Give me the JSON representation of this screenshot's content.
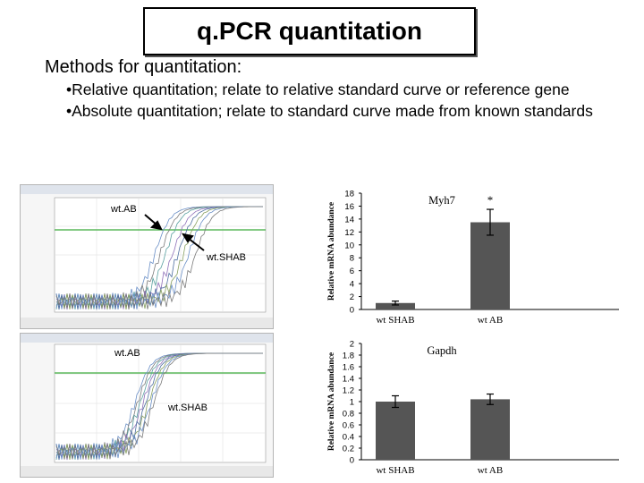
{
  "title": "q.PCR quantitation",
  "methods_heading": "Methods for quantitation:",
  "bullets": [
    "•Relative quantitation; relate to relative standard curve or reference gene",
    "•Absolute quantitation; relate to standard curve made from known standards"
  ],
  "amplification_plots": [
    {
      "label_top": "wt.AB",
      "label_bottom": "wt.SHAB"
    },
    {
      "label_top": "wt.AB",
      "label_bottom": "wt.SHAB"
    }
  ],
  "colors": {
    "bar": "#555555",
    "threshold": "#5cb85c",
    "panel_border": "#b5b5b5"
  },
  "chart_data": [
    {
      "type": "bar",
      "title": "Myh7",
      "ylabel": "Relative mRNA abundance",
      "categories": [
        "wt SHAB",
        "wt AB"
      ],
      "values": [
        1.0,
        13.5
      ],
      "errors": [
        0.3,
        2.0
      ],
      "ylim": [
        0,
        18
      ],
      "yticks": [
        0,
        2,
        4,
        6,
        8,
        10,
        12,
        14,
        16,
        18
      ],
      "annotation": "*"
    },
    {
      "type": "bar",
      "title": "Gapdh",
      "ylabel": "Relative mRNA abundance",
      "categories": [
        "wt SHAB",
        "wt AB"
      ],
      "values": [
        1.0,
        1.04
      ],
      "errors": [
        0.1,
        0.09
      ],
      "ylim": [
        0,
        2
      ],
      "yticks": [
        0,
        0.2,
        0.4,
        0.6,
        0.8,
        1,
        1.2,
        1.4,
        1.6,
        1.8,
        2
      ]
    }
  ]
}
